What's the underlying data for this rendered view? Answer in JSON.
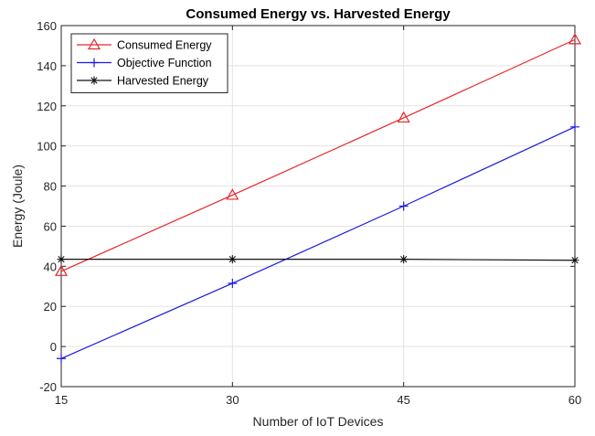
{
  "chart_data": {
    "type": "line",
    "title": "Consumed Energy vs. Harvested Energy",
    "xlabel": "Number of IoT Devices",
    "ylabel": "Energy (Joule)",
    "xlim": [
      15,
      60
    ],
    "ylim": [
      -20,
      160
    ],
    "xticks": [
      15,
      30,
      45,
      60
    ],
    "yticks": [
      -20,
      0,
      20,
      40,
      60,
      80,
      100,
      120,
      140,
      160
    ],
    "grid": true,
    "legend_position": "top-left",
    "series": [
      {
        "name": "Consumed Energy",
        "color": "#e8262b",
        "marker": "triangle",
        "x": [
          15,
          30,
          45,
          60
        ],
        "y": [
          37.5,
          75.5,
          114,
          153
        ]
      },
      {
        "name": "Objective Function",
        "color": "#1a1adf",
        "marker": "plus",
        "x": [
          15,
          30,
          45,
          60
        ],
        "y": [
          -6,
          31.5,
          70,
          109.5
        ]
      },
      {
        "name": "Harvested Energy",
        "color": "#111111",
        "marker": "star",
        "x": [
          15,
          30,
          45,
          60
        ],
        "y": [
          43.5,
          43.5,
          43.5,
          43
        ]
      }
    ]
  }
}
